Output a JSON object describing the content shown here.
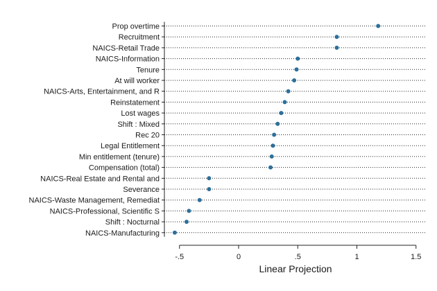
{
  "chart_data": {
    "type": "scatter",
    "subtype": "dot-plot",
    "categories": [
      "Prop overtime",
      "Recruitment",
      "NAICS-Retail Trade",
      "NAICS-Information",
      "Tenure",
      "At will worker",
      "NAICS-Arts, Entertainment, and R",
      "Reinstatement",
      "Lost wages",
      "Shift : Mixed",
      "Rec 20",
      "Legal Entitlement",
      "Min entitlement (tenure)",
      "Compensation (total)",
      "NAICS-Real Estate and Rental and",
      "Severance",
      "NAICS-Waste Management, Remediat",
      "NAICS-Professional, Scientific S",
      "Shift : Nocturnal",
      "NAICS-Manufacturing"
    ],
    "values": [
      1.18,
      0.83,
      0.83,
      0.5,
      0.49,
      0.47,
      0.42,
      0.39,
      0.36,
      0.33,
      0.3,
      0.29,
      0.28,
      0.27,
      -0.25,
      -0.25,
      -0.33,
      -0.42,
      -0.44,
      -0.54
    ],
    "xlabel": "Linear Projection",
    "xticks": [
      -0.5,
      0,
      0.5,
      1,
      1.5
    ],
    "xtick_labels": [
      "-.5",
      "0",
      ".5",
      "1",
      "1.5"
    ],
    "xlim": [
      -0.6,
      1.6
    ],
    "grid": false,
    "marker_color": "#2e6f99"
  }
}
